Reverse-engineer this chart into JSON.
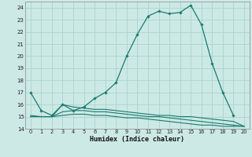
{
  "xlabel": "Humidex (Indice chaleur)",
  "background_color": "#cce9e5",
  "grid_color": "#aad4cf",
  "line_color": "#1a7a6e",
  "xlim": [
    -0.5,
    20.5
  ],
  "ylim": [
    14,
    24.5
  ],
  "yticks": [
    14,
    15,
    16,
    17,
    18,
    19,
    20,
    21,
    22,
    23,
    24
  ],
  "xticks": [
    0,
    1,
    2,
    3,
    4,
    5,
    6,
    7,
    8,
    9,
    10,
    11,
    12,
    13,
    14,
    15,
    16,
    17,
    18,
    19,
    20
  ],
  "series": [
    {
      "x": [
        0,
        1,
        2,
        3,
        4,
        5,
        6,
        7,
        8,
        9,
        10,
        11,
        12,
        13,
        14,
        15,
        16,
        17,
        18,
        19
      ],
      "y": [
        17.0,
        15.5,
        15.1,
        16.0,
        15.5,
        15.8,
        16.5,
        17.0,
        17.8,
        20.0,
        21.8,
        23.3,
        23.7,
        23.5,
        23.6,
        24.2,
        22.6,
        19.4,
        17.0,
        15.1
      ],
      "marker": "D",
      "markersize": 1.8,
      "linewidth": 0.9
    },
    {
      "x": [
        0,
        1,
        2,
        3,
        4,
        5,
        6,
        7,
        8,
        9,
        10,
        11,
        12,
        13,
        14,
        15,
        16,
        17,
        18,
        19,
        20
      ],
      "y": [
        15.1,
        15.0,
        15.0,
        16.0,
        15.8,
        15.7,
        15.6,
        15.6,
        15.5,
        15.4,
        15.3,
        15.2,
        15.1,
        15.1,
        15.0,
        15.0,
        14.9,
        14.8,
        14.7,
        14.6,
        14.2
      ],
      "marker": null,
      "linewidth": 0.8
    },
    {
      "x": [
        0,
        1,
        2,
        3,
        4,
        5,
        6,
        7,
        8,
        9,
        10,
        11,
        12,
        13,
        14,
        15,
        16,
        17,
        18,
        19,
        20
      ],
      "y": [
        15.0,
        15.0,
        15.0,
        15.4,
        15.5,
        15.5,
        15.4,
        15.4,
        15.3,
        15.2,
        15.1,
        15.0,
        15.0,
        14.9,
        14.8,
        14.7,
        14.6,
        14.5,
        14.4,
        14.3,
        14.2
      ],
      "marker": null,
      "linewidth": 0.8
    },
    {
      "x": [
        0,
        1,
        2,
        3,
        4,
        5,
        6,
        7,
        8,
        9,
        10,
        11,
        12,
        13,
        14,
        15,
        16,
        17,
        18,
        19,
        20
      ],
      "y": [
        15.0,
        15.0,
        15.0,
        15.1,
        15.2,
        15.2,
        15.1,
        15.1,
        15.0,
        14.9,
        14.9,
        14.8,
        14.7,
        14.6,
        14.5,
        14.4,
        14.3,
        14.3,
        14.2,
        14.2,
        14.2
      ],
      "marker": null,
      "linewidth": 0.8
    }
  ]
}
